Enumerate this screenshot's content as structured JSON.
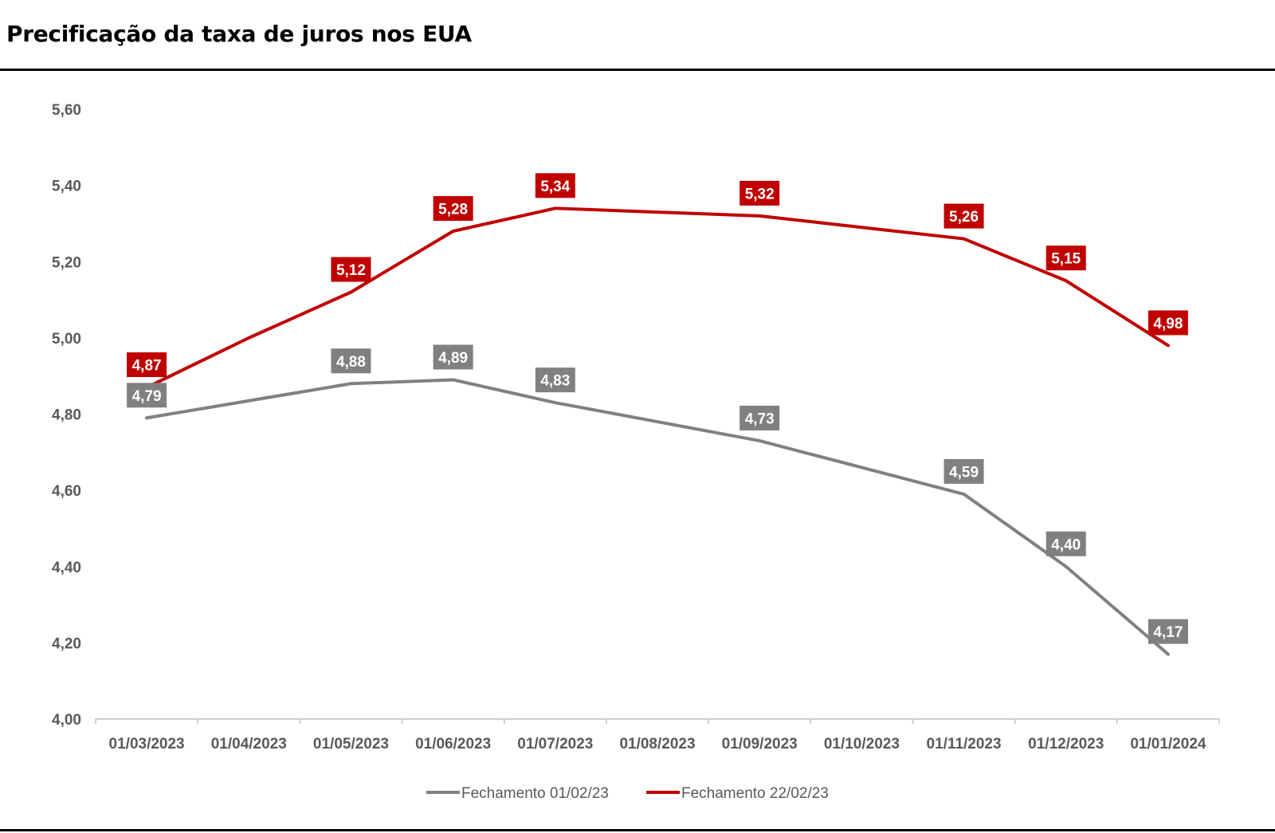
{
  "header": {
    "title": "Precificação da taxa de juros nos EUA"
  },
  "chart_data": {
    "type": "line",
    "title": "Precificação da taxa de juros nos EUA",
    "xlabel": "",
    "ylabel": "",
    "categories": [
      "01/03/2023",
      "01/04/2023",
      "01/05/2023",
      "01/06/2023",
      "01/07/2023",
      "01/08/2023",
      "01/09/2023",
      "01/10/2023",
      "01/11/2023",
      "01/12/2023",
      "01/01/2024"
    ],
    "ylim": [
      4.0,
      5.6
    ],
    "yticks": [
      "4,00",
      "4,20",
      "4,40",
      "4,60",
      "4,80",
      "5,00",
      "5,20",
      "5,40",
      "5,60"
    ],
    "grid": false,
    "legend_position": "bottom",
    "series": [
      {
        "name": "Fechamento 01/02/23",
        "color": "#808080",
        "values": [
          4.79,
          4.835,
          4.88,
          4.89,
          4.83,
          4.78,
          4.73,
          4.66,
          4.59,
          4.4,
          4.17
        ],
        "labeled_indices": [
          0,
          2,
          3,
          4,
          6,
          8,
          9,
          10
        ],
        "labels": [
          "4,79",
          "",
          "4,88",
          "4,89",
          "4,83",
          "",
          "4,73",
          "",
          "4,59",
          "4,40",
          "4,17"
        ]
      },
      {
        "name": "Fechamento 22/02/23",
        "color": "#C00000",
        "values": [
          4.87,
          5.0,
          5.12,
          5.28,
          5.34,
          5.33,
          5.32,
          5.29,
          5.26,
          5.15,
          4.98
        ],
        "labeled_indices": [
          0,
          2,
          3,
          4,
          6,
          8,
          9,
          10
        ],
        "labels": [
          "4,87",
          "",
          "5,12",
          "5,28",
          "5,34",
          "",
          "5,32",
          "",
          "5,26",
          "5,15",
          "4,98"
        ]
      }
    ]
  }
}
